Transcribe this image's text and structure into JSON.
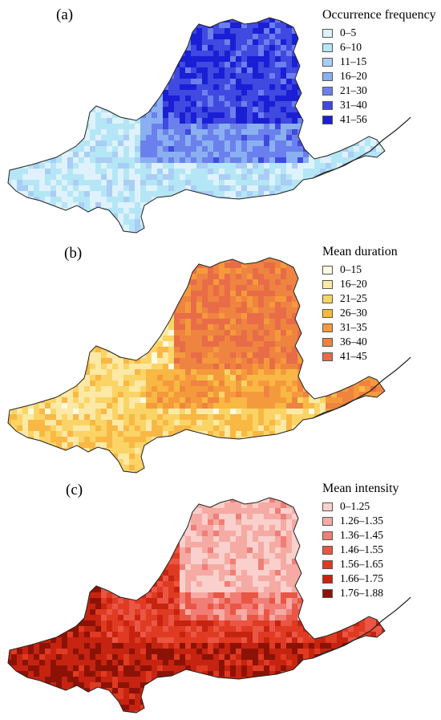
{
  "panels": [
    {
      "label": "(a)",
      "legend": {
        "title": "Occurrence frequency",
        "items": [
          {
            "label": "0–5",
            "color": "#dff2fb"
          },
          {
            "label": "6–10",
            "color": "#b4e6f6"
          },
          {
            "label": "11–15",
            "color": "#a9cdf4"
          },
          {
            "label": "16–20",
            "color": "#8ab0f1"
          },
          {
            "label": "21–30",
            "color": "#6b80ec"
          },
          {
            "label": "31–40",
            "color": "#4049e0"
          },
          {
            "label": "41–56",
            "color": "#1a1fd6"
          }
        ]
      }
    },
    {
      "label": "(b)",
      "legend": {
        "title": "Mean duration",
        "items": [
          {
            "label": "0–15",
            "color": "#fffbe0"
          },
          {
            "label": "16–20",
            "color": "#fde9a6"
          },
          {
            "label": "21–25",
            "color": "#fbd466"
          },
          {
            "label": "26–30",
            "color": "#f9b844"
          },
          {
            "label": "31–35",
            "color": "#f59a3c"
          },
          {
            "label": "36–40",
            "color": "#ee8440"
          },
          {
            "label": "41–45",
            "color": "#e86c48"
          }
        ]
      }
    },
    {
      "label": "(c)",
      "legend": {
        "title": "Mean intensity",
        "items": [
          {
            "label": "0–1.25",
            "color": "#f9d0cc"
          },
          {
            "label": "1.26–1.35",
            "color": "#f5aaa4"
          },
          {
            "label": "1.36–1.45",
            "color": "#f07e76"
          },
          {
            "label": "1.46–1.55",
            "color": "#ea5544"
          },
          {
            "label": "1.56–1.65",
            "color": "#e03a22"
          },
          {
            "label": "1.66–1.75",
            "color": "#c62410"
          },
          {
            "label": "1.76–1.88",
            "color": "#8c1206"
          }
        ]
      }
    }
  ]
}
